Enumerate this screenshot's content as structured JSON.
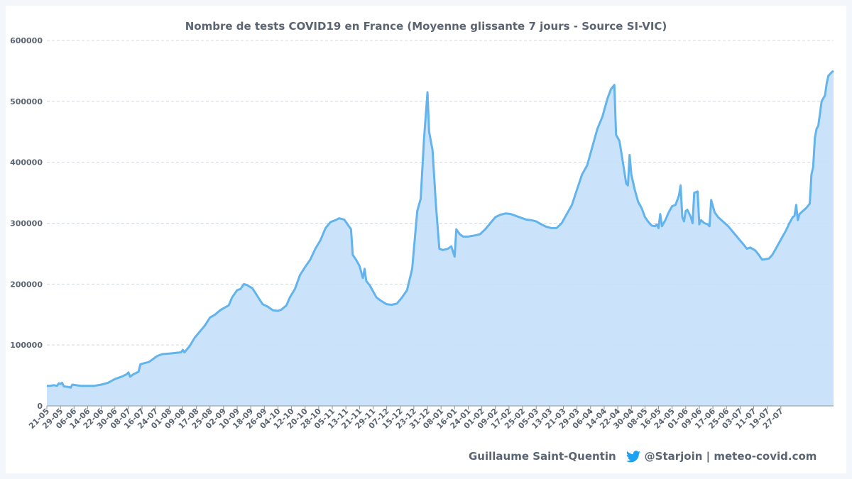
{
  "chart_data": {
    "type": "area",
    "title": "Nombre de tests COVID19 en France (Moyenne glissante 7 jours - Source SI-VIC)",
    "xlabel": "",
    "ylabel": "",
    "ylim": [
      0,
      600000
    ],
    "yticks": [
      "0",
      "100000",
      "200000",
      "300000",
      "400000",
      "500000",
      "600000"
    ],
    "xticks": [
      "21-05",
      "29-05",
      "06-06",
      "14-06",
      "22-06",
      "30-06",
      "08-07",
      "16-07",
      "24-07",
      "01-08",
      "09-08",
      "17-08",
      "25-08",
      "02-09",
      "10-09",
      "18-09",
      "26-09",
      "04-10",
      "12-10",
      "20-10",
      "28-10",
      "05-11",
      "13-11",
      "21-11",
      "29-11",
      "07-12",
      "15-12",
      "23-12",
      "31-12",
      "08-01",
      "16-01",
      "24-01",
      "01-02",
      "09-02",
      "17-02",
      "25-02",
      "05-03",
      "13-03",
      "21-03",
      "29-03",
      "06-04",
      "14-04",
      "22-04",
      "30-04",
      "08-05",
      "16-05",
      "24-05",
      "01-06",
      "09-06",
      "17-06",
      "25-06",
      "03-07",
      "11-07",
      "19-07",
      "27-07"
    ],
    "grid": true,
    "colors": {
      "line": "#63b3ed",
      "fill": "#c4e0fa",
      "grid": "#d3d9e0",
      "text": "#5b6472",
      "accent": "#1da1f2"
    },
    "x_start_label": "21-05",
    "series": [
      {
        "name": "",
        "points": [
          [
            0,
            33000
          ],
          [
            2,
            33000
          ],
          [
            4,
            34000
          ],
          [
            6,
            33000
          ],
          [
            7,
            37000
          ],
          [
            8,
            36000
          ],
          [
            9,
            38000
          ],
          [
            10,
            32000
          ],
          [
            13,
            31000
          ],
          [
            14,
            30000
          ],
          [
            15,
            35000
          ],
          [
            17,
            34000
          ],
          [
            20,
            33000
          ],
          [
            24,
            33000
          ],
          [
            28,
            33000
          ],
          [
            32,
            35000
          ],
          [
            36,
            38000
          ],
          [
            40,
            44000
          ],
          [
            44,
            48000
          ],
          [
            47,
            52000
          ],
          [
            48,
            55000
          ],
          [
            49,
            48000
          ],
          [
            51,
            52000
          ],
          [
            54,
            56000
          ],
          [
            55,
            68000
          ],
          [
            57,
            70000
          ],
          [
            60,
            72000
          ],
          [
            63,
            78000
          ],
          [
            65,
            82000
          ],
          [
            68,
            85000
          ],
          [
            72,
            86000
          ],
          [
            76,
            87000
          ],
          [
            79,
            88000
          ],
          [
            80,
            92000
          ],
          [
            81,
            88000
          ],
          [
            84,
            98000
          ],
          [
            87,
            112000
          ],
          [
            90,
            122000
          ],
          [
            93,
            132000
          ],
          [
            96,
            145000
          ],
          [
            99,
            150000
          ],
          [
            102,
            157000
          ],
          [
            105,
            162000
          ],
          [
            107,
            165000
          ],
          [
            109,
            178000
          ],
          [
            112,
            190000
          ],
          [
            114,
            192000
          ],
          [
            116,
            200000
          ],
          [
            118,
            198000
          ],
          [
            121,
            193000
          ],
          [
            124,
            180000
          ],
          [
            127,
            167000
          ],
          [
            130,
            163000
          ],
          [
            133,
            157000
          ],
          [
            136,
            156000
          ],
          [
            138,
            158000
          ],
          [
            141,
            165000
          ],
          [
            143,
            178000
          ],
          [
            146,
            192000
          ],
          [
            149,
            215000
          ],
          [
            152,
            228000
          ],
          [
            155,
            240000
          ],
          [
            158,
            258000
          ],
          [
            161,
            272000
          ],
          [
            164,
            292000
          ],
          [
            167,
            302000
          ],
          [
            170,
            305000
          ],
          [
            172,
            308000
          ],
          [
            175,
            306000
          ],
          [
            177,
            298000
          ],
          [
            179,
            290000
          ],
          [
            180,
            248000
          ],
          [
            182,
            240000
          ],
          [
            184,
            230000
          ],
          [
            186,
            210000
          ],
          [
            187,
            225000
          ],
          [
            188,
            205000
          ],
          [
            190,
            198000
          ],
          [
            192,
            188000
          ],
          [
            194,
            178000
          ],
          [
            197,
            172000
          ],
          [
            200,
            167000
          ],
          [
            203,
            166000
          ],
          [
            206,
            168000
          ],
          [
            209,
            178000
          ],
          [
            212,
            190000
          ],
          [
            215,
            225000
          ],
          [
            218,
            320000
          ],
          [
            220,
            340000
          ],
          [
            222,
            440000
          ],
          [
            224,
            515000
          ],
          [
            225,
            450000
          ],
          [
            227,
            420000
          ],
          [
            229,
            330000
          ],
          [
            231,
            258000
          ],
          [
            233,
            256000
          ],
          [
            236,
            258000
          ],
          [
            238,
            262000
          ],
          [
            240,
            245000
          ],
          [
            241,
            290000
          ],
          [
            243,
            282000
          ],
          [
            245,
            278000
          ],
          [
            248,
            278000
          ],
          [
            252,
            280000
          ],
          [
            255,
            282000
          ],
          [
            258,
            290000
          ],
          [
            261,
            300000
          ],
          [
            264,
            310000
          ],
          [
            267,
            314000
          ],
          [
            270,
            316000
          ],
          [
            273,
            315000
          ],
          [
            276,
            312000
          ],
          [
            279,
            309000
          ],
          [
            282,
            306000
          ],
          [
            285,
            305000
          ],
          [
            288,
            303000
          ],
          [
            291,
            298000
          ],
          [
            294,
            294000
          ],
          [
            297,
            292000
          ],
          [
            300,
            292000
          ],
          [
            303,
            300000
          ],
          [
            306,
            315000
          ],
          [
            309,
            330000
          ],
          [
            312,
            355000
          ],
          [
            315,
            380000
          ],
          [
            318,
            395000
          ],
          [
            321,
            425000
          ],
          [
            324,
            455000
          ],
          [
            327,
            475000
          ],
          [
            330,
            505000
          ],
          [
            332,
            520000
          ],
          [
            334,
            527000
          ],
          [
            335,
            445000
          ],
          [
            337,
            435000
          ],
          [
            339,
            400000
          ],
          [
            341,
            365000
          ],
          [
            342,
            362000
          ],
          [
            343,
            412000
          ],
          [
            344,
            380000
          ],
          [
            346,
            355000
          ],
          [
            348,
            335000
          ],
          [
            350,
            325000
          ],
          [
            352,
            310000
          ],
          [
            354,
            302000
          ],
          [
            356,
            296000
          ],
          [
            358,
            295000
          ],
          [
            359,
            298000
          ],
          [
            360,
            292000
          ],
          [
            361,
            315000
          ],
          [
            362,
            295000
          ],
          [
            364,
            305000
          ],
          [
            366,
            318000
          ],
          [
            368,
            328000
          ],
          [
            370,
            330000
          ],
          [
            372,
            345000
          ],
          [
            373,
            362000
          ],
          [
            374,
            310000
          ],
          [
            375,
            303000
          ],
          [
            376,
            320000
          ],
          [
            377,
            322000
          ],
          [
            379,
            310000
          ],
          [
            380,
            300000
          ],
          [
            381,
            350000
          ],
          [
            383,
            352000
          ],
          [
            384,
            298000
          ],
          [
            385,
            305000
          ],
          [
            387,
            300000
          ],
          [
            389,
            298000
          ],
          [
            390,
            295000
          ],
          [
            391,
            338000
          ],
          [
            393,
            318000
          ],
          [
            395,
            310000
          ],
          [
            397,
            305000
          ],
          [
            399,
            300000
          ],
          [
            401,
            295000
          ],
          [
            404,
            285000
          ],
          [
            407,
            275000
          ],
          [
            410,
            265000
          ],
          [
            412,
            258000
          ],
          [
            414,
            260000
          ],
          [
            417,
            255000
          ],
          [
            419,
            248000
          ],
          [
            421,
            240000
          ],
          [
            423,
            241000
          ],
          [
            425,
            242000
          ],
          [
            427,
            248000
          ],
          [
            429,
            258000
          ],
          [
            431,
            268000
          ],
          [
            433,
            278000
          ],
          [
            435,
            288000
          ],
          [
            437,
            300000
          ],
          [
            439,
            310000
          ],
          [
            440,
            312000
          ],
          [
            441,
            330000
          ],
          [
            442,
            305000
          ],
          [
            443,
            315000
          ],
          [
            445,
            320000
          ],
          [
            447,
            325000
          ],
          [
            449,
            332000
          ],
          [
            450,
            380000
          ],
          [
            451,
            392000
          ],
          [
            452,
            440000
          ],
          [
            453,
            455000
          ],
          [
            454,
            460000
          ],
          [
            455,
            480000
          ],
          [
            456,
            500000
          ],
          [
            457,
            505000
          ],
          [
            458,
            510000
          ],
          [
            459,
            530000
          ],
          [
            460,
            542000
          ],
          [
            462,
            548000
          ],
          [
            463,
            550000
          ]
        ]
      }
    ]
  },
  "footer": {
    "author": "Guillaume Saint-Quentin",
    "handle": "@Starjoin | meteo-covid.com",
    "icon": "twitter-bird-icon"
  }
}
